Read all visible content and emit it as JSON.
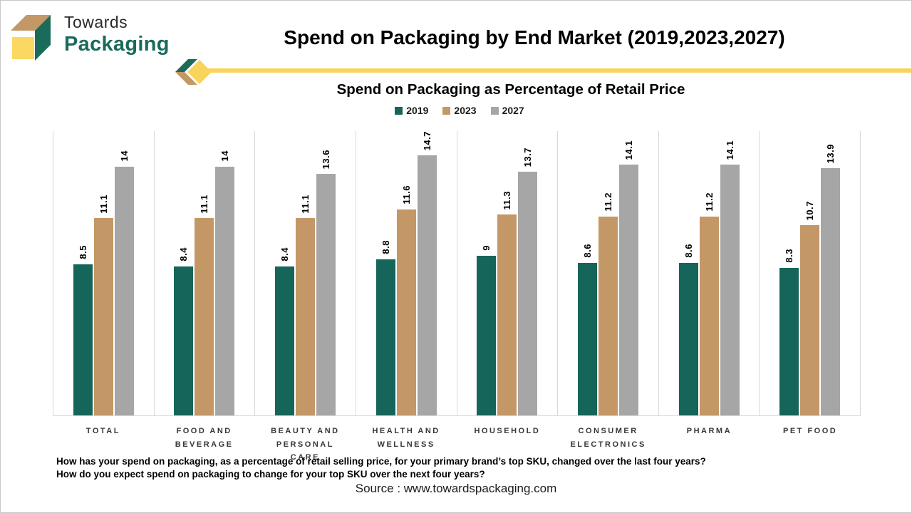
{
  "logo": {
    "line1": "Towards",
    "line2": "Packaging"
  },
  "header": {
    "title": "Spend on Packaging by End Market (2019,2023,2027)"
  },
  "chart_data": {
    "type": "bar",
    "title": "Spend on Packaging as Percentage of Retail Price",
    "categories": [
      "TOTAL",
      "FOOD AND BEVERAGE",
      "BEAUTY AND PERSONAL CARE",
      "HEALTH AND WELLNESS",
      "HOUSEHOLD",
      "CONSUMER ELECTRONICS",
      "PHARMA",
      "PET FOOD"
    ],
    "series": [
      {
        "name": "2019",
        "color": "#16655a",
        "values": [
          8.5,
          8.4,
          8.4,
          8.8,
          9,
          8.6,
          8.6,
          8.3
        ]
      },
      {
        "name": "2023",
        "color": "#c49767",
        "values": [
          11.1,
          11.1,
          11.1,
          11.6,
          11.3,
          11.2,
          11.2,
          10.7
        ]
      },
      {
        "name": "2027",
        "color": "#a6a6a6",
        "values": [
          14,
          14,
          13.6,
          14.7,
          13.7,
          14.1,
          14.1,
          13.9
        ]
      }
    ],
    "ylim": [
      0,
      16
    ],
    "xlabel": "",
    "ylabel": "",
    "legend_position": "top",
    "grid": "vertical-category-separators",
    "data_labels": "values rotated 90deg above each bar"
  },
  "footer": {
    "question1": "How has your spend on packaging, as a percentage of retail selling price, for your primary brand’s top SKU, changed over the last four years?",
    "question2": "How do you expect spend on packaging to change for your top SKU over the next four years?",
    "source": "Source : www.towardspackaging.com"
  },
  "colors": {
    "accent_yellow": "#f9d45c",
    "accent_tan": "#c49767",
    "accent_green": "#16655a",
    "accent_gray": "#a6a6a6",
    "grid_gray": "#d9d9d9"
  }
}
